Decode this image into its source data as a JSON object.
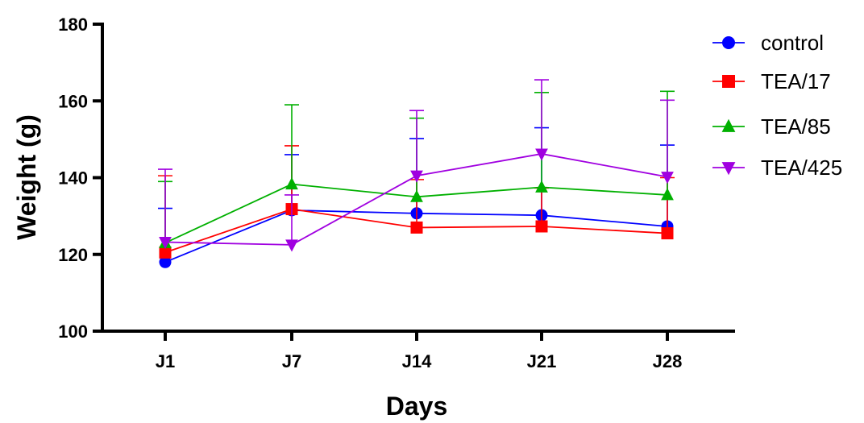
{
  "chart_data": {
    "type": "line",
    "xlabel": "Days",
    "ylabel": "Weight (g)",
    "categories": [
      "J1",
      "J7",
      "J14",
      "J21",
      "J28"
    ],
    "ylim": [
      100,
      180
    ],
    "yticks": [
      100,
      120,
      140,
      160,
      180
    ],
    "grid": false,
    "legend_position": "top-right",
    "error_bars": "upper only",
    "series": [
      {
        "name": "control",
        "color": "#0000ff",
        "marker": "circle",
        "values": [
          118,
          131.5,
          130.7,
          130.2,
          127.3
        ],
        "error": [
          14,
          14.5,
          19.5,
          22.8,
          21.2
        ]
      },
      {
        "name": "TEA/17",
        "color": "#ff0000",
        "marker": "square",
        "values": [
          120.5,
          131.8,
          127,
          127.3,
          125.5
        ],
        "error": [
          20,
          16.5,
          12.5,
          10,
          14.5
        ]
      },
      {
        "name": "TEA/85",
        "color": "#00b000",
        "marker": "triangle-up",
        "values": [
          123,
          138.3,
          135,
          137.5,
          135.5
        ],
        "error": [
          16,
          20.7,
          20.5,
          24.7,
          27
        ]
      },
      {
        "name": "TEA/425",
        "color": "#a000e0",
        "marker": "triangle-down",
        "values": [
          123.2,
          122.5,
          140.5,
          146.2,
          140.2
        ],
        "error": [
          19,
          13,
          17,
          19.3,
          20
        ]
      }
    ]
  }
}
